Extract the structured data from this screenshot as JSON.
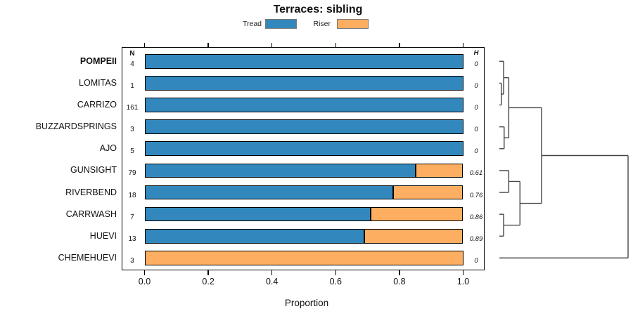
{
  "title": "Terraces: sibling",
  "legend": {
    "items": [
      {
        "label": "Tread",
        "color": "#3288BD"
      },
      {
        "label": "Riser",
        "color": "#FDAE61"
      }
    ]
  },
  "columns": {
    "n_header": "N",
    "h_header": "H"
  },
  "x_axis": {
    "label": "Proportion",
    "ticks": [
      {
        "label": "0.0",
        "value": 0.0
      },
      {
        "label": "0.2",
        "value": 0.2
      },
      {
        "label": "0.4",
        "value": 0.4
      },
      {
        "label": "0.6",
        "value": 0.6
      },
      {
        "label": "0.8",
        "value": 0.8
      },
      {
        "label": "1.0",
        "value": 1.0
      }
    ]
  },
  "chart_data": {
    "type": "bar",
    "stacked": true,
    "orientation": "horizontal",
    "title": "Terraces: sibling",
    "xlabel": "Proportion",
    "xlim": [
      0,
      1
    ],
    "grid": false,
    "legend_position": "top-center",
    "categories": [
      "POMPEII",
      "LOMITAS",
      "CARRIZO",
      "BUZZARDSPRINGS",
      "AJO",
      "GUNSIGHT",
      "RIVERBEND",
      "CARRWASH",
      "HUEVI",
      "CHEMEHUEVI"
    ],
    "emphasized_category": "POMPEII",
    "n": [
      4,
      1,
      161,
      3,
      5,
      79,
      18,
      7,
      13,
      3
    ],
    "h": [
      "0",
      "0",
      "0",
      "0",
      "0",
      "0.61",
      "0.76",
      "0.86",
      "0.89",
      "0"
    ],
    "series": [
      {
        "name": "Tread",
        "color": "#3288BD",
        "values": [
          1,
          1,
          1,
          1,
          1,
          0.85,
          0.78,
          0.71,
          0.69,
          0
        ]
      },
      {
        "name": "Riser",
        "color": "#FDAE61",
        "values": [
          0,
          0,
          0,
          0,
          0,
          0.15,
          0.22,
          0.29,
          0.31,
          1
        ]
      }
    ],
    "dendrogram": {
      "side": "right",
      "merges": [
        {
          "id": "M0",
          "a": "L1",
          "b": "L2",
          "h": 0.015
        },
        {
          "id": "M1",
          "a": "L0",
          "b": "M0",
          "h": 0.033
        },
        {
          "id": "M2",
          "a": "L3",
          "b": "L4",
          "h": 0.037
        },
        {
          "id": "M3",
          "a": "M1",
          "b": "M2",
          "h": 0.073
        },
        {
          "id": "M4",
          "a": "L5",
          "b": "L6",
          "h": 0.073
        },
        {
          "id": "M5",
          "a": "L7",
          "b": "L8",
          "h": 0.033
        },
        {
          "id": "M6",
          "a": "M4",
          "b": "M5",
          "h": 0.16
        },
        {
          "id": "M7",
          "a": "M3",
          "b": "M6",
          "h": 0.328
        },
        {
          "id": "M8",
          "a": "M7",
          "b": "L9",
          "h": 1.0
        }
      ]
    }
  }
}
